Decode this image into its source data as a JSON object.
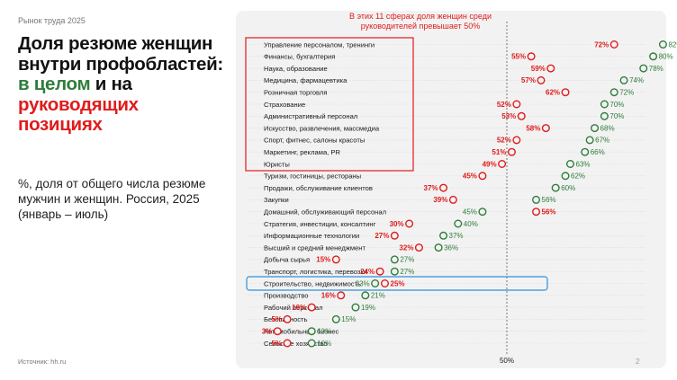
{
  "header": {
    "topline": "Рынок труда 2025",
    "title_part1": "Доля резюме женщин внутри профобластей:",
    "title_green": "в целом",
    "title_mid": "и на",
    "title_red": "руководящих позициях",
    "subtitle": "%, доля от общего числа резюме мужчин и женщин. Россия, 2025 (январь – июль)"
  },
  "callout": "В этих 11 сферах доля женщин среди руководителей превышает 50%",
  "footer": {
    "source": "Источник: hh.ru",
    "page": "2"
  },
  "colors": {
    "green": "#2f7d3b",
    "red": "#e01b1b",
    "highlight_blue": "#2f8fdc",
    "panel": "#f2f2f2"
  },
  "chart_data": {
    "type": "dot",
    "reference_line": {
      "value": 50,
      "label": "50%"
    },
    "highlighted_top_n": 11,
    "highlighted_category": "Строительство, недвижимость",
    "series": [
      {
        "key": "overall",
        "color": "#2f7d3b",
        "label_format": "{v}%"
      },
      {
        "key": "managers",
        "color": "#e01b1b",
        "label_format": "{v}%"
      }
    ],
    "rows": [
      {
        "category": "Управление персоналом, тренинги",
        "overall": 82,
        "managers": 72
      },
      {
        "category": "Финансы, бухгалтерия",
        "overall": 80,
        "managers": 55
      },
      {
        "category": "Наука, образование",
        "overall": 78,
        "managers": 59
      },
      {
        "category": "Медицина, фармацевтика",
        "overall": 74,
        "managers": 57
      },
      {
        "category": "Розничная торговля",
        "overall": 72,
        "managers": 62
      },
      {
        "category": "Страхование",
        "overall": 70,
        "managers": 52
      },
      {
        "category": "Административный персонал",
        "overall": 70,
        "managers": 53
      },
      {
        "category": "Искусство, развлечения, массмедиа",
        "overall": 68,
        "managers": 58
      },
      {
        "category": "Спорт, фитнес, салоны красоты",
        "overall": 67,
        "managers": 52
      },
      {
        "category": "Маркетинг, реклама, PR",
        "overall": 66,
        "managers": 51
      },
      {
        "category": "Юристы",
        "overall": 63,
        "managers": 49
      },
      {
        "category": "Туризм, гостиницы, рестораны",
        "overall": 62,
        "managers": 45
      },
      {
        "category": "Продажи, обслуживание клиентов",
        "overall": 60,
        "managers": 37
      },
      {
        "category": "Закупки",
        "overall": 56,
        "managers": 39
      },
      {
        "category": "Домашний, обслуживающий персонал",
        "overall": 45,
        "managers": 56
      },
      {
        "category": "Стратегия, инвестиции, консалтинг",
        "overall": 40,
        "managers": 30
      },
      {
        "category": "Информационные технологии",
        "overall": 37,
        "managers": 27
      },
      {
        "category": "Высший и средний менеджмент",
        "overall": 36,
        "managers": 32
      },
      {
        "category": "Добыча сырья",
        "overall": 27,
        "managers": 15
      },
      {
        "category": "Транспорт, логистика, перевозки",
        "overall": 27,
        "managers": 24
      },
      {
        "category": "Строительство, недвижимость",
        "overall": 23,
        "managers": 25
      },
      {
        "category": "Производство",
        "overall": 21,
        "managers": 16
      },
      {
        "category": "Рабочий персонал",
        "overall": 19,
        "managers": 10
      },
      {
        "category": "Безопасность",
        "overall": 15,
        "managers": 5
      },
      {
        "category": "Автомобильный бизнес",
        "overall": 10,
        "managers": 3
      },
      {
        "category": "Сельское хозяйство",
        "overall": 10,
        "managers": 5
      }
    ]
  }
}
